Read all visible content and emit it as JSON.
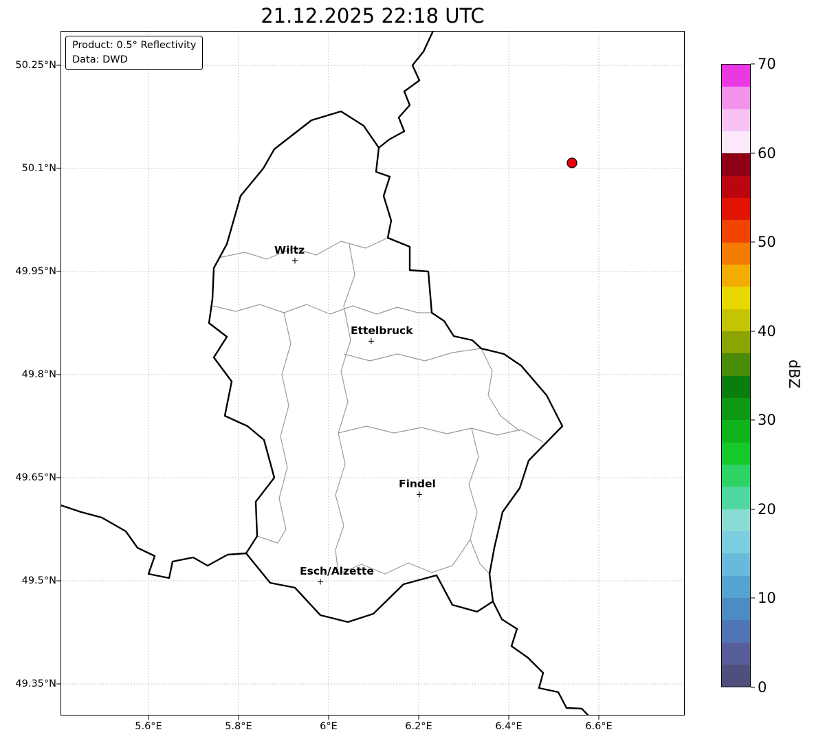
{
  "title": "21.12.2025 22:18 UTC",
  "info_box": {
    "line1": "Product: 0.5° Reflectivity",
    "line2": "Data: DWD"
  },
  "map": {
    "y_ticks": [
      {
        "label": "50.25°N"
      },
      {
        "label": "50.1°N"
      },
      {
        "label": "49.95°N"
      },
      {
        "label": "49.8°N"
      },
      {
        "label": "49.65°N"
      },
      {
        "label": "49.5°N"
      },
      {
        "label": "49.35°N"
      }
    ],
    "x_ticks": [
      {
        "label": "5.6°E"
      },
      {
        "label": "5.8°E"
      },
      {
        "label": "6°E"
      },
      {
        "label": "6.2°E"
      },
      {
        "label": "6.4°E"
      },
      {
        "label": "6.6°E"
      }
    ],
    "cities": [
      {
        "name": "Wiltz"
      },
      {
        "name": "Ettelbruck"
      },
      {
        "name": "Findel"
      },
      {
        "name": "Esch/Alzette"
      }
    ],
    "marker_glyph": "+",
    "radar_site": {
      "color": "#e8000b",
      "edge_color": "#000000"
    },
    "border_colors": {
      "country": "#000000",
      "district": "#9a9a9a",
      "grid": "#b5b5b5"
    }
  },
  "colorbar": {
    "label": "dBZ",
    "min": 0,
    "max": 70,
    "tick_labels": [
      "0",
      "10",
      "20",
      "30",
      "40",
      "50",
      "60",
      "70"
    ],
    "colors": [
      "#4f4f7d",
      "#595d9b",
      "#5174b5",
      "#4b8cc3",
      "#55a3cf",
      "#67bada",
      "#7bcee0",
      "#8adcd2",
      "#50d89e",
      "#2fd264",
      "#17ca2c",
      "#0fb41a",
      "#0c9a13",
      "#0a7e0d",
      "#4a8c06",
      "#8ba402",
      "#c4c400",
      "#e8d800",
      "#f5ac00",
      "#f37c00",
      "#ee4400",
      "#e01400",
      "#bc060f",
      "#8f0014",
      "#fce8fb",
      "#f8c3f4",
      "#f392eb",
      "#ea39e2"
    ]
  }
}
